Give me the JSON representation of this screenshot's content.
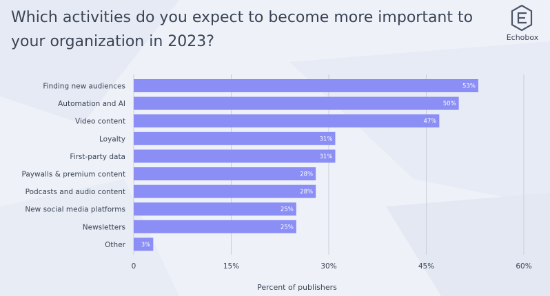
{
  "title": "Which activities do you expect to become more important to your organization in 2023?",
  "logo": {
    "text": "Echobox",
    "icon": "echobox-logo-icon"
  },
  "colors": {
    "bar": "#8b8ef5",
    "grid": "#c9cedb",
    "text": "#3a4454",
    "background": "#eef1f8"
  },
  "chart_data": {
    "type": "bar",
    "orientation": "horizontal",
    "categories": [
      "Finding new audiences",
      "Automation and AI",
      "Video content",
      "Loyalty",
      "First-party data",
      "Paywalls & premium content",
      "Podcasts and audio content",
      "New social media platforms",
      "Newsletters",
      "Other"
    ],
    "values": [
      53,
      50,
      47,
      31,
      31,
      28,
      28,
      25,
      25,
      3
    ],
    "value_labels": [
      "53%",
      "50%",
      "47%",
      "31%",
      "31%",
      "28%",
      "28%",
      "25%",
      "25%",
      "3%"
    ],
    "xlabel": "Percent of publishers",
    "xlim": [
      0,
      60
    ],
    "xticks": [
      0,
      15,
      30,
      45,
      60
    ],
    "xtick_labels": [
      "0",
      "15%",
      "30%",
      "45%",
      "60%"
    ],
    "grid": true
  }
}
